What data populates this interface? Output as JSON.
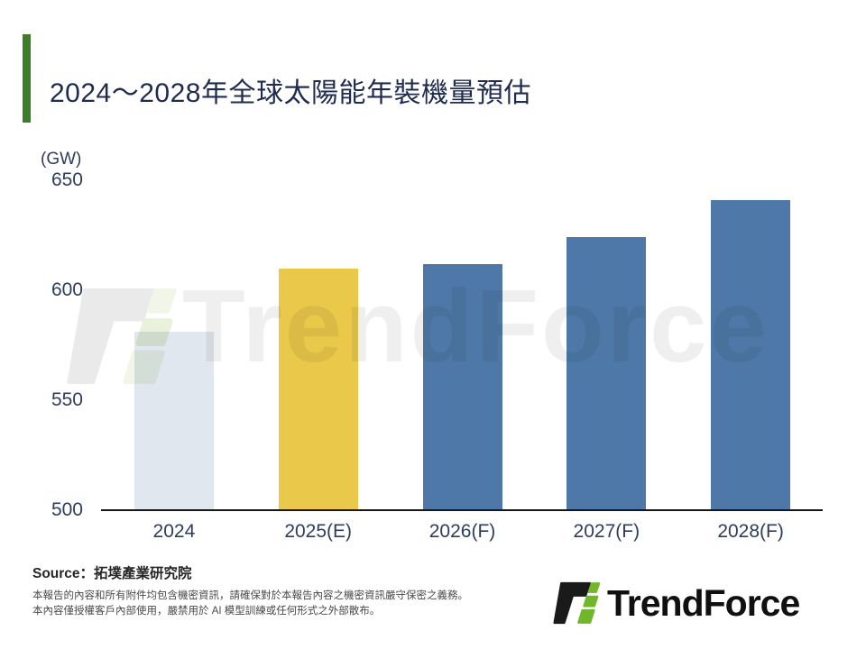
{
  "page": {
    "background": "#ffffff",
    "title_color": "#1f2c50",
    "accent_color": "#3c7e27",
    "axis_text_color": "#2e3c5e"
  },
  "chart_data": {
    "type": "bar",
    "title": "2024～2028年全球太陽能年裝機量預估",
    "ylabel": "(GW)",
    "xlabel": "",
    "categories": [
      "2024",
      "2025(E)",
      "2026(F)",
      "2027(F)",
      "2028(F)"
    ],
    "values": [
      581,
      610,
      612,
      624,
      641
    ],
    "ylim": [
      500,
      650
    ],
    "yticks": [
      650,
      600,
      550,
      500
    ],
    "bar_colors": [
      "#e1e7ee",
      "#eac84a",
      "#4d78a7",
      "#4d78a7",
      "#4d78a7"
    ],
    "grid": false,
    "legend": "none",
    "annotations": []
  },
  "watermark": {
    "text": "TrendForce",
    "text_color": "#efefef",
    "mark_gray": "#eaeaea",
    "mark_green_light": "#f1f6e9",
    "mark_green_mid": "#e9f1db"
  },
  "footer": {
    "source": "Source：拓墣產業研究院",
    "disclaimer_line1": "本報告的內容和所有附件均包含機密資訊，請確保對於本報告內容之機密資訊嚴守保密之義務。",
    "disclaimer_line2": "本內容僅授權客戶內部使用，嚴禁用於 AI 模型訓練或任何形式之外部散布。",
    "logo_text": "TrendForce",
    "logo_black": "#1a1a1a",
    "logo_green": "#72b62c"
  }
}
